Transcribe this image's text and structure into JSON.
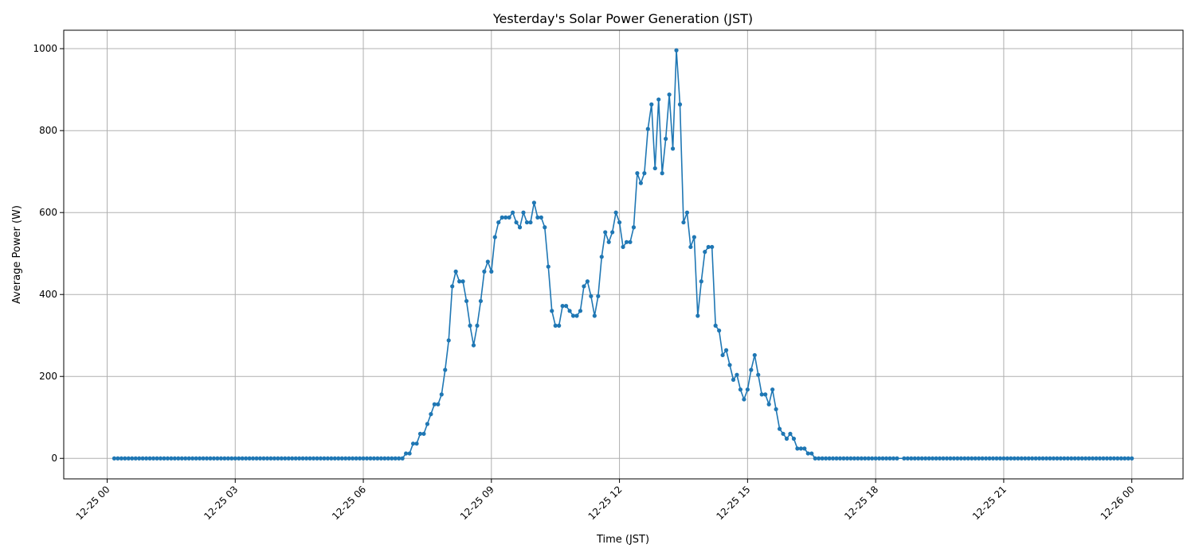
{
  "chart_data": {
    "type": "line",
    "title": "Yesterday's Solar Power Generation (JST)",
    "xlabel": "Time (JST)",
    "ylabel": "Average Power (W)",
    "xlim": [
      "12-24 22:59",
      "12-26 01:12"
    ],
    "ylim": [
      -50,
      1045
    ],
    "grid": true,
    "marker": "circle",
    "line_color": "#1f77b4",
    "grid_color": "#b0b0b0",
    "x_ticks": [
      "12-25 00",
      "12-25 03",
      "12-25 06",
      "12-25 09",
      "12-25 12",
      "12-25 15",
      "12-25 18",
      "12-25 21",
      "12-26 00"
    ],
    "y_ticks": [
      0,
      200,
      400,
      600,
      800,
      1000
    ],
    "night_zero_ranges": [
      [
        "12-25 00:10",
        "12-25 06:55"
      ],
      [
        "12-25 16:35",
        "12-25 18:30"
      ],
      [
        "12-25 18:40",
        "12-26 00:00"
      ]
    ],
    "x": [
      "12-25 07:00",
      "12-25 07:05",
      "12-25 07:10",
      "12-25 07:15",
      "12-25 07:20",
      "12-25 07:25",
      "12-25 07:30",
      "12-25 07:35",
      "12-25 07:40",
      "12-25 07:45",
      "12-25 07:50",
      "12-25 07:55",
      "12-25 08:00",
      "12-25 08:05",
      "12-25 08:10",
      "12-25 08:15",
      "12-25 08:20",
      "12-25 08:25",
      "12-25 08:30",
      "12-25 08:35",
      "12-25 08:40",
      "12-25 08:45",
      "12-25 08:50",
      "12-25 08:55",
      "12-25 09:00",
      "12-25 09:05",
      "12-25 09:10",
      "12-25 09:15",
      "12-25 09:20",
      "12-25 09:25",
      "12-25 09:30",
      "12-25 09:35",
      "12-25 09:40",
      "12-25 09:45",
      "12-25 09:50",
      "12-25 09:55",
      "12-25 10:00",
      "12-25 10:05",
      "12-25 10:10",
      "12-25 10:15",
      "12-25 10:20",
      "12-25 10:25",
      "12-25 10:30",
      "12-25 10:35",
      "12-25 10:40",
      "12-25 10:45",
      "12-25 10:50",
      "12-25 10:55",
      "12-25 11:00",
      "12-25 11:05",
      "12-25 11:10",
      "12-25 11:15",
      "12-25 11:20",
      "12-25 11:25",
      "12-25 11:30",
      "12-25 11:35",
      "12-25 11:40",
      "12-25 11:45",
      "12-25 11:50",
      "12-25 11:55",
      "12-25 12:00",
      "12-25 12:05",
      "12-25 12:10",
      "12-25 12:15",
      "12-25 12:20",
      "12-25 12:25",
      "12-25 12:30",
      "12-25 12:35",
      "12-25 12:40",
      "12-25 12:45",
      "12-25 12:50",
      "12-25 12:55",
      "12-25 13:00",
      "12-25 13:05",
      "12-25 13:10",
      "12-25 13:15",
      "12-25 13:20",
      "12-25 13:25",
      "12-25 13:30",
      "12-25 13:35",
      "12-25 13:40",
      "12-25 13:45",
      "12-25 13:50",
      "12-25 13:55",
      "12-25 14:00",
      "12-25 14:05",
      "12-25 14:10",
      "12-25 14:15",
      "12-25 14:20",
      "12-25 14:25",
      "12-25 14:30",
      "12-25 14:35",
      "12-25 14:40",
      "12-25 14:45",
      "12-25 14:50",
      "12-25 14:55",
      "12-25 15:00",
      "12-25 15:05",
      "12-25 15:10",
      "12-25 15:15",
      "12-25 15:20",
      "12-25 15:25",
      "12-25 15:30",
      "12-25 15:35",
      "12-25 15:40",
      "12-25 15:45",
      "12-25 15:50",
      "12-25 15:55",
      "12-25 16:00",
      "12-25 16:05",
      "12-25 16:10",
      "12-25 16:15",
      "12-25 16:20",
      "12-25 16:25",
      "12-25 16:30"
    ],
    "y": [
      12,
      12,
      36,
      36,
      60,
      60,
      84,
      108,
      132,
      132,
      156,
      216,
      288,
      420,
      456,
      432,
      432,
      384,
      324,
      276,
      324,
      384,
      456,
      480,
      456,
      540,
      576,
      588,
      588,
      588,
      600,
      576,
      564,
      600,
      576,
      576,
      624,
      588,
      588,
      564,
      468,
      360,
      324,
      324,
      372,
      372,
      360,
      348,
      348,
      360,
      420,
      432,
      396,
      348,
      396,
      492,
      552,
      528,
      552,
      600,
      576,
      516,
      528,
      528,
      564,
      696,
      672,
      696,
      804,
      864,
      708,
      876,
      696,
      780,
      888,
      756,
      996,
      864,
      576,
      600,
      516,
      540,
      348,
      432,
      504,
      516,
      516,
      324,
      312,
      252,
      264,
      228,
      192,
      204,
      168,
      144,
      168,
      216,
      252,
      204,
      156,
      156,
      132,
      168,
      120,
      72,
      60,
      48,
      60,
      48,
      24,
      24,
      24,
      12,
      12
    ]
  }
}
